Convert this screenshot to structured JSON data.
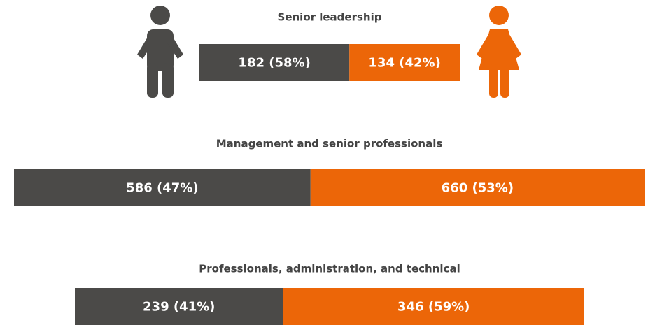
{
  "chart_data": [
    {
      "type": "stacked-bar",
      "title": "Senior leadership",
      "series": [
        {
          "color": "#4b4a48",
          "values": [
            182
          ],
          "value_labels": [
            "182 (58%)"
          ]
        },
        {
          "color": "#ec6608",
          "values": [
            134
          ],
          "value_labels": [
            "134 (42%)"
          ]
        }
      ]
    },
    {
      "type": "stacked-bar",
      "title": "Management and senior professionals",
      "series": [
        {
          "color": "#4b4a48",
          "values": [
            586
          ],
          "value_labels": [
            "586 (47%)"
          ]
        },
        {
          "color": "#ec6608",
          "values": [
            660
          ],
          "value_labels": [
            "660 (53%)"
          ]
        }
      ]
    },
    {
      "type": "stacked-bar",
      "title": "Professionals, administration, and technical",
      "series": [
        {
          "color": "#4b4a48",
          "values": [
            239
          ],
          "value_labels": [
            "239 (41%)"
          ]
        },
        {
          "color": "#ec6608",
          "values": [
            346
          ],
          "value_labels": [
            "346 (59%)"
          ]
        }
      ]
    }
  ]
}
